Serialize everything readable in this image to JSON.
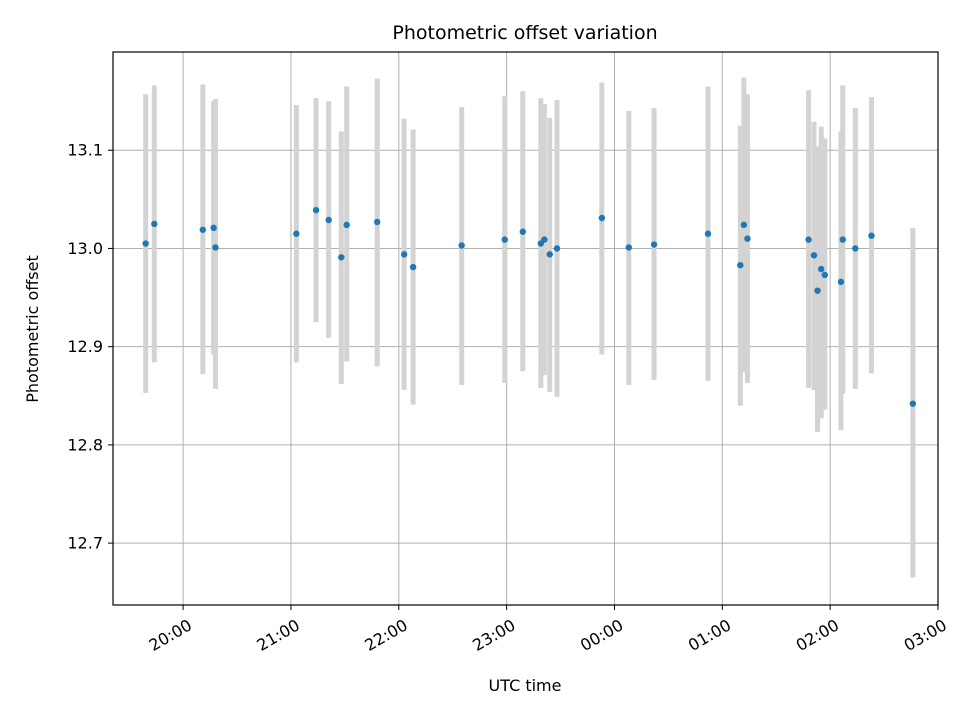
{
  "chart_data": {
    "type": "scatter",
    "title": "Photometric offset variation",
    "xlabel": "UTC time",
    "ylabel": "Photometric offset",
    "x_axis": {
      "unit": "hours",
      "range": [
        19.35,
        27.0
      ],
      "ticks": [
        20,
        21,
        22,
        23,
        24,
        25,
        26,
        27
      ],
      "tick_labels": [
        "20:00",
        "21:00",
        "22:00",
        "23:00",
        "00:00",
        "01:00",
        "02:00",
        "03:00"
      ],
      "tick_label_rotation": -30
    },
    "y_axis": {
      "range": [
        12.637,
        13.2
      ],
      "ticks": [
        12.7,
        12.8,
        12.9,
        13.0,
        13.1
      ],
      "tick_labels": [
        "12.7",
        "12.8",
        "12.9",
        "13.0",
        "13.1"
      ]
    },
    "grid": true,
    "colors": {
      "marker": "#1f77b4",
      "errorbar": "#d3d3d3",
      "grid": "#b0b0b0"
    },
    "points": [
      {
        "x": 19.653,
        "y": 13.005,
        "ylow": 12.853,
        "yhigh": 13.157
      },
      {
        "x": 19.733,
        "y": 13.025,
        "ylow": 12.884,
        "yhigh": 13.166
      },
      {
        "x": 20.183,
        "y": 13.019,
        "ylow": 12.872,
        "yhigh": 13.167
      },
      {
        "x": 20.283,
        "y": 13.021,
        "ylow": 12.892,
        "yhigh": 13.15
      },
      {
        "x": 20.3,
        "y": 13.001,
        "ylow": 12.857,
        "yhigh": 13.152
      },
      {
        "x": 21.05,
        "y": 13.015,
        "ylow": 12.884,
        "yhigh": 13.146
      },
      {
        "x": 21.233,
        "y": 13.039,
        "ylow": 12.925,
        "yhigh": 13.153
      },
      {
        "x": 21.35,
        "y": 13.029,
        "ylow": 12.909,
        "yhigh": 13.15
      },
      {
        "x": 21.467,
        "y": 12.991,
        "ylow": 12.862,
        "yhigh": 13.119
      },
      {
        "x": 21.517,
        "y": 13.024,
        "ylow": 12.885,
        "yhigh": 13.165
      },
      {
        "x": 21.8,
        "y": 13.027,
        "ylow": 12.88,
        "yhigh": 13.173
      },
      {
        "x": 22.05,
        "y": 12.994,
        "ylow": 12.856,
        "yhigh": 13.132
      },
      {
        "x": 22.133,
        "y": 12.981,
        "ylow": 12.841,
        "yhigh": 13.121
      },
      {
        "x": 22.583,
        "y": 13.003,
        "ylow": 12.861,
        "yhigh": 13.144
      },
      {
        "x": 22.983,
        "y": 13.009,
        "ylow": 12.863,
        "yhigh": 13.155
      },
      {
        "x": 23.15,
        "y": 13.017,
        "ylow": 12.875,
        "yhigh": 13.16
      },
      {
        "x": 23.317,
        "y": 13.005,
        "ylow": 12.858,
        "yhigh": 13.153
      },
      {
        "x": 23.35,
        "y": 13.009,
        "ylow": 12.871,
        "yhigh": 13.147
      },
      {
        "x": 23.4,
        "y": 12.994,
        "ylow": 12.854,
        "yhigh": 13.133
      },
      {
        "x": 23.467,
        "y": 13.0,
        "ylow": 12.849,
        "yhigh": 13.151
      },
      {
        "x": 23.883,
        "y": 13.031,
        "ylow": 12.892,
        "yhigh": 13.169
      },
      {
        "x": 24.133,
        "y": 13.001,
        "ylow": 12.861,
        "yhigh": 13.14
      },
      {
        "x": 24.367,
        "y": 13.004,
        "ylow": 12.866,
        "yhigh": 13.143
      },
      {
        "x": 24.867,
        "y": 13.015,
        "ylow": 12.865,
        "yhigh": 13.165
      },
      {
        "x": 25.167,
        "y": 12.983,
        "ylow": 12.84,
        "yhigh": 13.125
      },
      {
        "x": 25.2,
        "y": 13.024,
        "ylow": 12.874,
        "yhigh": 13.174
      },
      {
        "x": 25.233,
        "y": 13.01,
        "ylow": 12.863,
        "yhigh": 13.157
      },
      {
        "x": 25.8,
        "y": 13.009,
        "ylow": 12.858,
        "yhigh": 13.161
      },
      {
        "x": 25.85,
        "y": 12.993,
        "ylow": 12.856,
        "yhigh": 13.129
      },
      {
        "x": 25.883,
        "y": 12.957,
        "ylow": 12.813,
        "yhigh": 13.104
      },
      {
        "x": 25.917,
        "y": 12.979,
        "ylow": 12.827,
        "yhigh": 13.124
      },
      {
        "x": 25.95,
        "y": 12.973,
        "ylow": 12.836,
        "yhigh": 13.112
      },
      {
        "x": 26.1,
        "y": 12.966,
        "ylow": 12.815,
        "yhigh": 13.119
      },
      {
        "x": 26.117,
        "y": 13.009,
        "ylow": 12.852,
        "yhigh": 13.166
      },
      {
        "x": 26.233,
        "y": 13.0,
        "ylow": 12.857,
        "yhigh": 13.143
      },
      {
        "x": 26.383,
        "y": 13.013,
        "ylow": 12.873,
        "yhigh": 13.154
      },
      {
        "x": 26.767,
        "y": 12.842,
        "ylow": 12.665,
        "yhigh": 13.021
      }
    ]
  }
}
